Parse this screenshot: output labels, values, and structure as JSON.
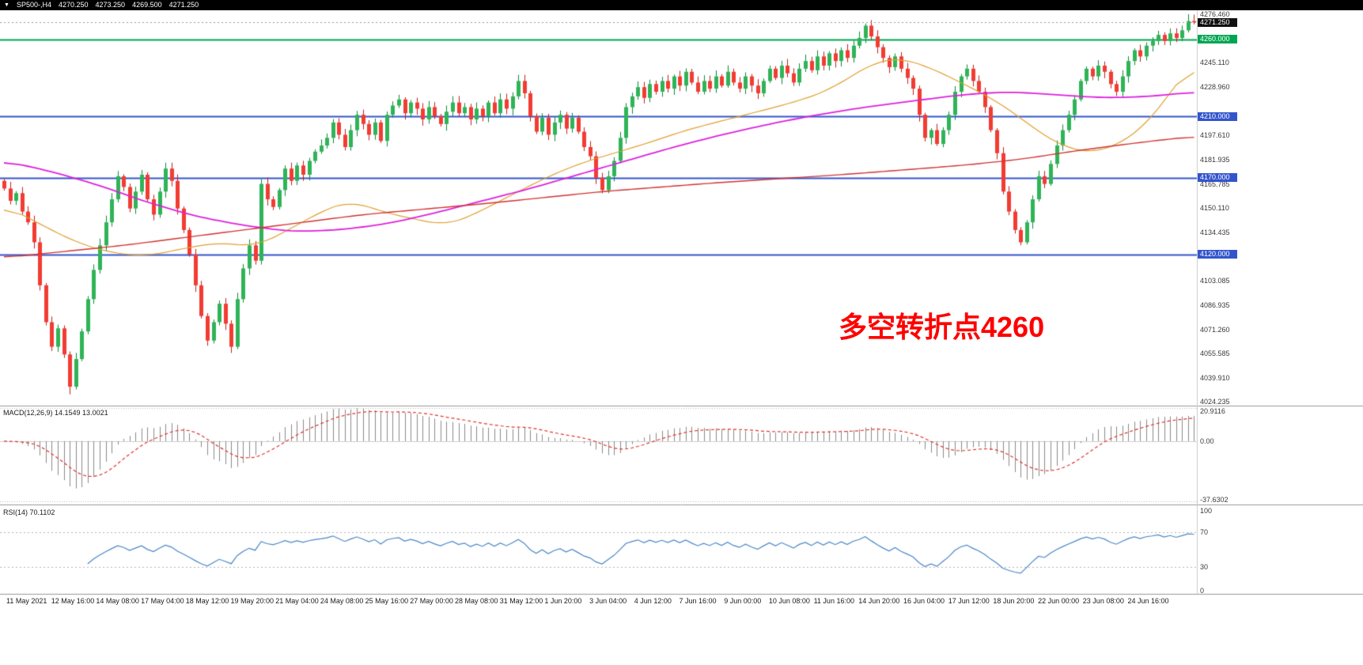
{
  "header": {
    "triangle": "▼",
    "symbol_timeframe": "SP500-,H4",
    "open": "4270.250",
    "high": "4273.250",
    "low": "4269.500",
    "close": "4271.250"
  },
  "price_axis": {
    "labels": [
      "4276.460",
      "4245.110",
      "4228.960",
      "4197.610",
      "4181.935",
      "4165.785",
      "4150.110",
      "4134.435",
      "4103.085",
      "4086.935",
      "4071.260",
      "4055.585",
      "4039.910",
      "4024.235"
    ]
  },
  "price_badges": {
    "current": {
      "text": "4271.250",
      "bg": "#111111",
      "price": 4271.25
    },
    "levels": [
      {
        "text": "4260.000",
        "bg": "#00A651",
        "price": 4260
      },
      {
        "text": "4210.000",
        "bg": "#3355CC",
        "price": 4210
      },
      {
        "text": "4170.000",
        "bg": "#3355CC",
        "price": 4170
      },
      {
        "text": "4120.000",
        "bg": "#3355CC",
        "price": 4120
      }
    ]
  },
  "time_axis": {
    "labels": [
      "11 May 2021",
      "12 May 16:00",
      "14 May 08:00",
      "17 May 04:00",
      "18 May 12:00",
      "19 May 20:00",
      "21 May 04:00",
      "24 May 08:00",
      "25 May 16:00",
      "27 May 00:00",
      "28 May 08:00",
      "31 May 12:00",
      "1 Jun 20:00",
      "3 Jun 04:00",
      "4 Jun 12:00",
      "7 Jun 16:00",
      "9 Jun 00:00",
      "10 Jun 08:00",
      "11 Jun 16:00",
      "14 Jun 20:00",
      "16 Jun 04:00",
      "17 Jun 12:00",
      "18 Jun 20:00",
      "22 Jun 00:00",
      "23 Jun 08:00",
      "24 Jun 16:00"
    ]
  },
  "macd_panel": {
    "label": "MACD(12,26,9) 14.1549 13.0021",
    "scale": [
      "20.9116",
      "0.00",
      "-37.6302"
    ]
  },
  "rsi_panel": {
    "label": "RSI(14) 70.1102",
    "scale": [
      "100",
      "70",
      "30",
      "0"
    ]
  },
  "chart_data": {
    "type": "candlestick",
    "title": "SP500-,H4",
    "symbol": "SP500-",
    "timeframe": "H4",
    "annotation": "多空转折点4260",
    "annotation_color": "#ff0000",
    "current_bar": {
      "open": 4270.25,
      "high": 4273.25,
      "low": 4269.5,
      "close": 4271.25
    },
    "y_axis": {
      "min": 4024.235,
      "max": 4276.46
    },
    "first_open": 4168,
    "closes": [
      4163,
      4155,
      4160,
      4148,
      4141,
      4128,
      4100,
      4076,
      4060,
      4072,
      4055,
      4034,
      4052,
      4070,
      4091,
      4110,
      4126,
      4141,
      4156,
      4171,
      4164,
      4150,
      4161,
      4172,
      4156,
      4146,
      4161,
      4176,
      4168,
      4150,
      4136,
      4120,
      4100,
      4080,
      4064,
      4076,
      4088,
      4075,
      4060,
      4091,
      4111,
      4126,
      4116,
      4166,
      4156,
      4151,
      4162,
      4176,
      4168,
      4178,
      4172,
      4181,
      4187,
      4191,
      4196,
      4206,
      4198,
      4190,
      4201,
      4211,
      4205,
      4198,
      4206,
      4194,
      4211,
      4217,
      4221,
      4212,
      4219,
      4215,
      4208,
      4216,
      4210,
      4205,
      4213,
      4219,
      4212,
      4216,
      4208,
      4215,
      4210,
      4219,
      4212,
      4221,
      4215,
      4223,
      4233,
      4225,
      4210,
      4200,
      4209,
      4198,
      4206,
      4211,
      4202,
      4209,
      4200,
      4190,
      4184,
      4170,
      4162,
      4171,
      4181,
      4196,
      4216,
      4223,
      4229,
      4222,
      4231,
      4226,
      4233,
      4228,
      4236,
      4230,
      4239,
      4232,
      4226,
      4233,
      4228,
      4236,
      4230,
      4239,
      4232,
      4228,
      4236,
      4230,
      4225,
      4233,
      4241,
      4235,
      4243,
      4238,
      4232,
      4241,
      4246,
      4240,
      4249,
      4243,
      4251,
      4246,
      4253,
      4248,
      4256,
      4261,
      4269,
      4262,
      4255,
      4248,
      4242,
      4249,
      4241,
      4235,
      4228,
      4211,
      4196,
      4201,
      4192,
      4201,
      4211,
      4226,
      4236,
      4241,
      4233,
      4226,
      4216,
      4201,
      4186,
      4161,
      4148,
      4136,
      4128,
      4141,
      4156,
      4171,
      4166,
      4179,
      4191,
      4201,
      4211,
      4221,
      4233,
      4241,
      4236,
      4243,
      4239,
      4231,
      4226,
      4236,
      4246,
      4253,
      4249,
      4256,
      4259,
      4263,
      4259,
      4264,
      4261,
      4266,
      4272,
      4271.25
    ],
    "special": {
      "low_bar": 11,
      "low": 4029.0,
      "high_bar": 198,
      "high": 4276.46
    },
    "horizontal_lines": [
      {
        "price": 4260,
        "color": "#00A651",
        "width": 2
      },
      {
        "price": 4210,
        "color": "#3355CC",
        "width": 2
      },
      {
        "price": 4170,
        "color": "#3355CC",
        "width": 2
      },
      {
        "price": 4120,
        "color": "#3355CC",
        "width": 2
      }
    ],
    "moving_averages": [
      {
        "name": "fast-ma",
        "color": "#E0A030",
        "width": 1.2,
        "anchors": [
          [
            0,
            4152
          ],
          [
            6,
            4140
          ],
          [
            12,
            4128
          ],
          [
            18,
            4121
          ],
          [
            24,
            4119
          ],
          [
            30,
            4124
          ],
          [
            36,
            4128
          ],
          [
            42,
            4125
          ],
          [
            48,
            4137
          ],
          [
            54,
            4150
          ],
          [
            58,
            4155
          ],
          [
            64,
            4147
          ],
          [
            70,
            4142
          ],
          [
            74,
            4139
          ],
          [
            78,
            4145
          ],
          [
            84,
            4157
          ],
          [
            90,
            4169
          ],
          [
            96,
            4179
          ],
          [
            102,
            4186
          ],
          [
            108,
            4193
          ],
          [
            114,
            4201
          ],
          [
            120,
            4207
          ],
          [
            126,
            4213
          ],
          [
            132,
            4219
          ],
          [
            138,
            4227
          ],
          [
            142,
            4237
          ],
          [
            146,
            4246
          ],
          [
            150,
            4248
          ],
          [
            154,
            4243
          ],
          [
            158,
            4236
          ],
          [
            162,
            4228
          ],
          [
            166,
            4220
          ],
          [
            170,
            4209
          ],
          [
            174,
            4197
          ],
          [
            178,
            4189
          ],
          [
            182,
            4186
          ],
          [
            186,
            4191
          ],
          [
            190,
            4201
          ],
          [
            193,
            4214
          ],
          [
            196,
            4231
          ],
          [
            199,
            4246
          ]
        ]
      },
      {
        "name": "mid-ma",
        "color": "#DD22DD",
        "width": 1.8,
        "anchors": [
          [
            0,
            4181
          ],
          [
            8,
            4174
          ],
          [
            16,
            4165
          ],
          [
            24,
            4154
          ],
          [
            32,
            4145
          ],
          [
            40,
            4139
          ],
          [
            48,
            4135
          ],
          [
            56,
            4136
          ],
          [
            64,
            4140
          ],
          [
            72,
            4147
          ],
          [
            80,
            4155
          ],
          [
            88,
            4163
          ],
          [
            96,
            4172
          ],
          [
            104,
            4181
          ],
          [
            112,
            4190
          ],
          [
            120,
            4198
          ],
          [
            128,
            4205
          ],
          [
            136,
            4211
          ],
          [
            144,
            4216
          ],
          [
            152,
            4220
          ],
          [
            160,
            4224
          ],
          [
            168,
            4226
          ],
          [
            176,
            4224
          ],
          [
            184,
            4222
          ],
          [
            192,
            4223
          ],
          [
            199,
            4226
          ]
        ]
      },
      {
        "name": "slow-ma",
        "color": "#D23333",
        "width": 1.4,
        "anchors": [
          [
            0,
            4118
          ],
          [
            20,
            4126
          ],
          [
            40,
            4136
          ],
          [
            60,
            4146
          ],
          [
            80,
            4153
          ],
          [
            100,
            4161
          ],
          [
            120,
            4167
          ],
          [
            140,
            4172
          ],
          [
            160,
            4178
          ],
          [
            170,
            4182
          ],
          [
            180,
            4188
          ],
          [
            190,
            4193
          ],
          [
            199,
            4197
          ]
        ]
      }
    ],
    "indicators": [
      {
        "name": "MACD",
        "params": [
          12,
          26,
          9
        ],
        "values": [
          14.1549,
          13.0021
        ],
        "scale": {
          "max": 20.9116,
          "zero": 0,
          "min": -37.6302
        }
      },
      {
        "name": "RSI",
        "params": [
          14
        ],
        "value": 70.1102,
        "scale": {
          "max": 100,
          "levels": [
            70,
            30
          ],
          "min": 0
        }
      }
    ],
    "colors": {
      "up_candle": "#2FB457",
      "down_candle": "#F23C32",
      "macd_histogram": "#8a8a8a",
      "macd_signal": "#E03333",
      "rsi_line": "#4a86c8"
    }
  }
}
